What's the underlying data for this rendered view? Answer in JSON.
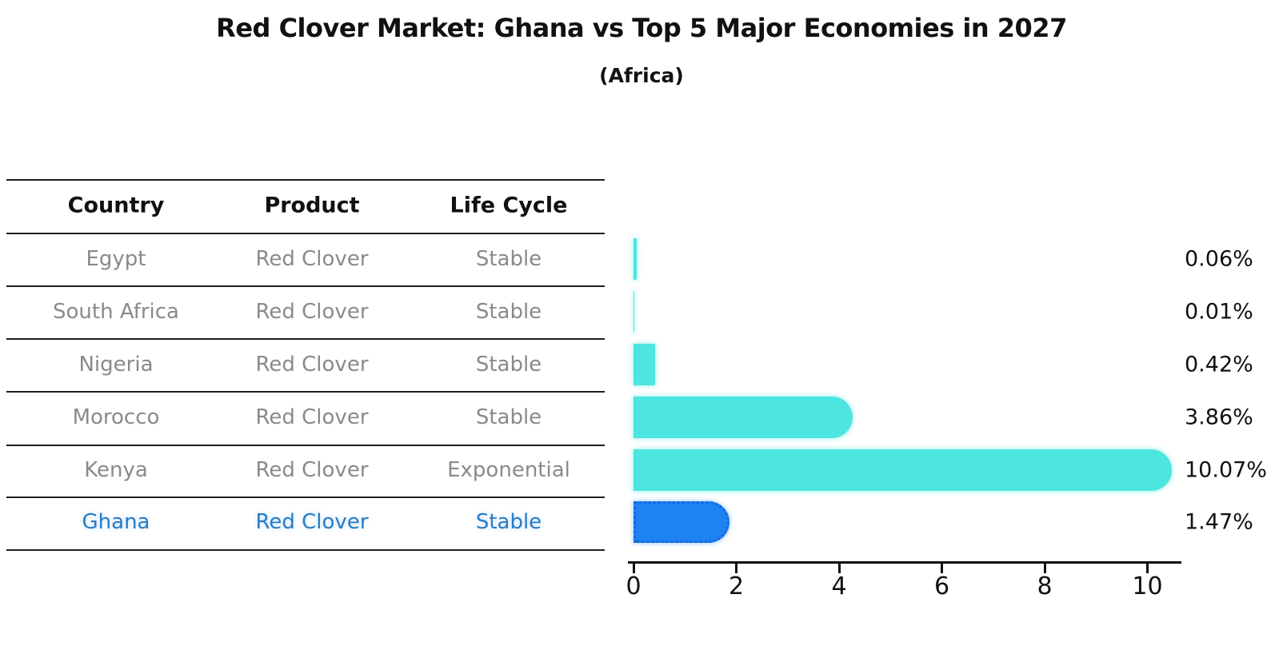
{
  "title": "Red Clover Market: Ghana vs Top 5 Major Economies in 2027",
  "subtitle": "(Africa)",
  "table": {
    "columns": [
      "Country",
      "Product",
      "Life Cycle"
    ],
    "rows": [
      {
        "country": "Egypt",
        "product": "Red Clover",
        "life_cycle": "Stable",
        "highlight": false
      },
      {
        "country": "South Africa",
        "product": "Red Clover",
        "life_cycle": "Stable",
        "highlight": false
      },
      {
        "country": "Nigeria",
        "product": "Red Clover",
        "life_cycle": "Stable",
        "highlight": false
      },
      {
        "country": "Morocco",
        "product": "Red Clover",
        "life_cycle": "Stable",
        "highlight": false
      },
      {
        "country": "Kenya",
        "product": "Red Clover",
        "life_cycle": "Exponential",
        "highlight": false
      },
      {
        "country": "Ghana",
        "product": "Red Clover",
        "life_cycle": "Stable",
        "highlight": true
      }
    ]
  },
  "chart_data": {
    "type": "bar",
    "orientation": "horizontal",
    "title": "Red Clover Market: Ghana vs Top 5 Major Economies in 2027",
    "subtitle": "(Africa)",
    "categories": [
      "Egypt",
      "South Africa",
      "Nigeria",
      "Morocco",
      "Kenya",
      "Ghana"
    ],
    "values": [
      0.06,
      0.01,
      0.42,
      3.86,
      10.07,
      1.47
    ],
    "value_labels": [
      "0.06%",
      "0.01%",
      "0.42%",
      "3.86%",
      "10.07%",
      "1.47%"
    ],
    "highlight_category": "Ghana",
    "xlim": [
      0,
      10.65
    ],
    "xticks": [
      0,
      2,
      4,
      6,
      8,
      10
    ],
    "grid": false,
    "legend": false,
    "colors": {
      "bar": "#4de5df",
      "highlight_bar": "#1e82f0",
      "highlight_border": "#1569dd",
      "highlight_text": "#2b7cc4",
      "table_text": "#8a8a8a",
      "header_text": "#111111",
      "line": "#1f1f1f"
    }
  }
}
